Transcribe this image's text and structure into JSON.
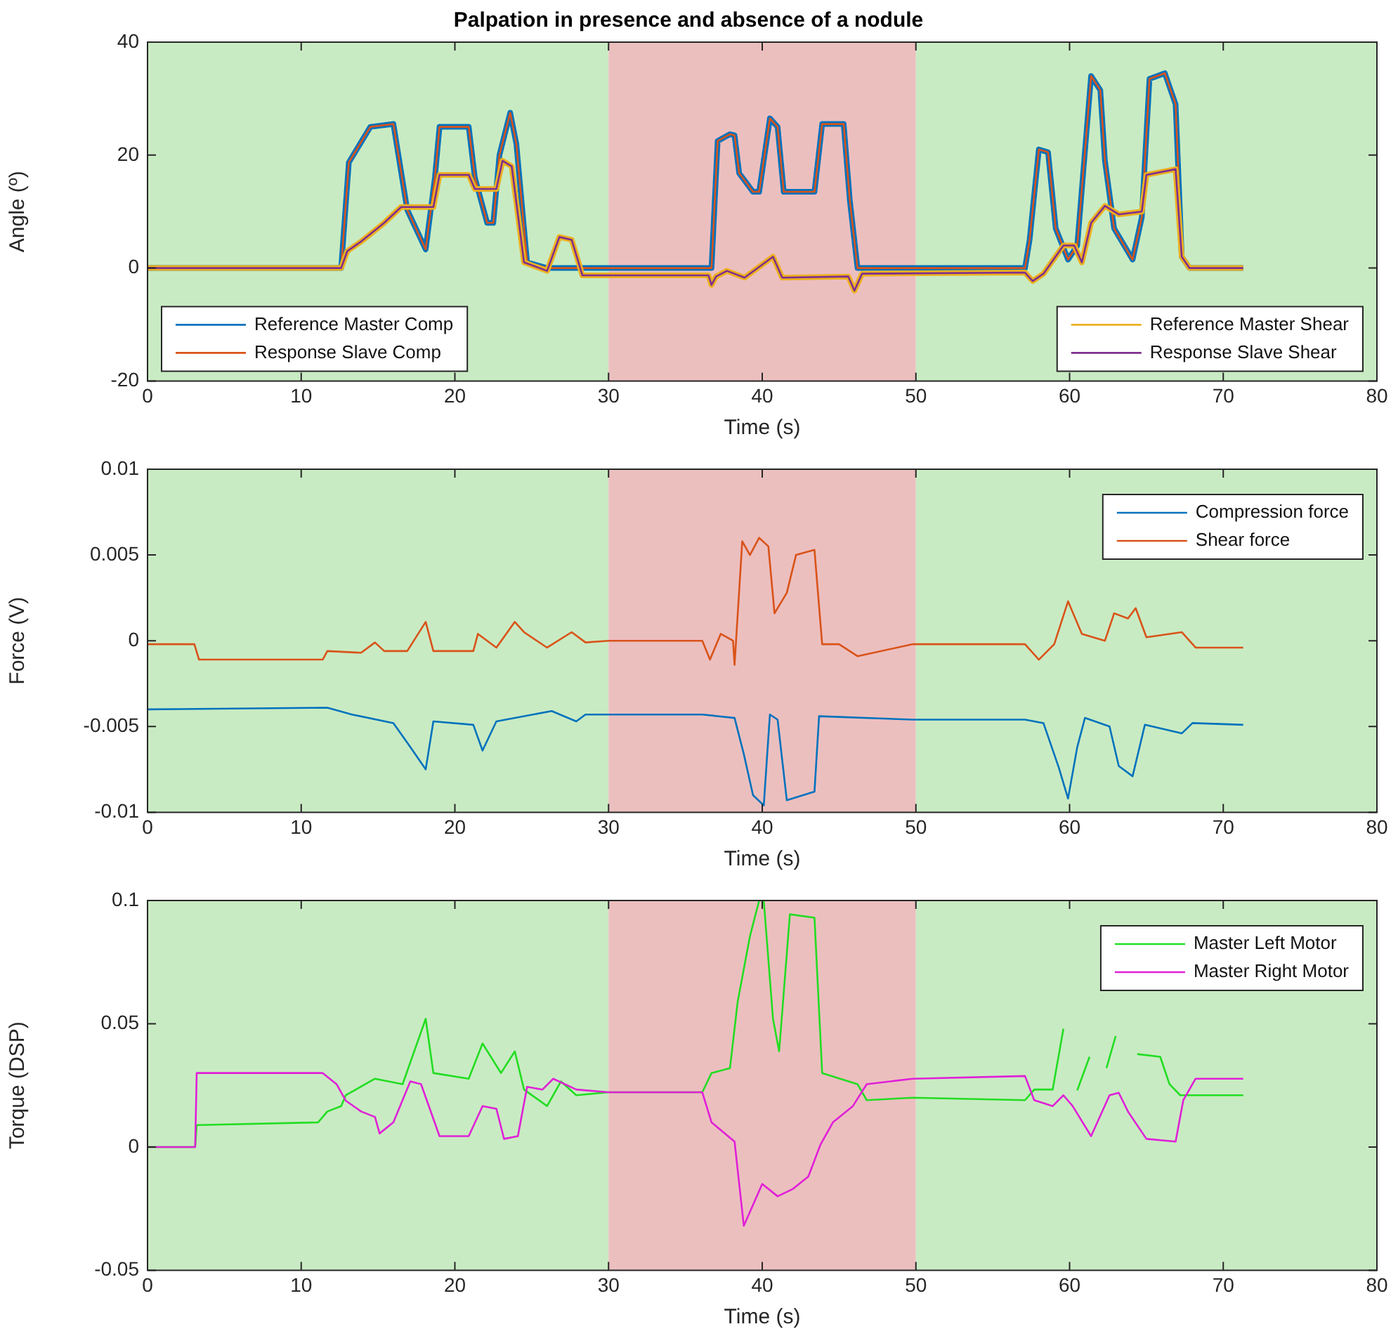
{
  "chart_data": [
    {
      "type": "line",
      "title": "Palpation in presence and absence of a nodule",
      "xlabel": "Time (s)",
      "ylabel": "Angle (º)",
      "xlim": [
        0,
        80
      ],
      "xticks": [
        0,
        10,
        20,
        30,
        40,
        50,
        60,
        70,
        80
      ],
      "ylim": [
        -20,
        40
      ],
      "yticks": [
        -20,
        0,
        20,
        40
      ],
      "grid": false,
      "legend": "bottom",
      "marker": "none",
      "line_style": "solid",
      "bands": [
        {
          "axis": "x",
          "from": 0,
          "to": 30,
          "color": "#c9ebc3"
        },
        {
          "axis": "x",
          "from": 30,
          "to": 50,
          "color": "#ecbfbf"
        },
        {
          "axis": "x",
          "from": 50,
          "to": 80,
          "color": "#c9ebc3"
        }
      ],
      "series": [
        {
          "name": "Reference Master Comp",
          "color": "#0072bd",
          "x": [
            0,
            12.6,
            13.1,
            14.5,
            16.0,
            16.9,
            18.1,
            18.7,
            19.0,
            20.9,
            21.3,
            22.1,
            22.5,
            22.9,
            23.6,
            24.0,
            24.7,
            26.0,
            30,
            36.7,
            37.1,
            37.9,
            38.2,
            38.5,
            39.4,
            39.8,
            40.5,
            41.0,
            41.4,
            43.4,
            43.9,
            45.3,
            45.7,
            46.2,
            57.1,
            57.4,
            58.0,
            58.6,
            59.1,
            59.9,
            60.5,
            61.4,
            62.0,
            62.3,
            62.9,
            64.1,
            64.7,
            65.2,
            66.2,
            66.9,
            67.3,
            67.8,
            71.3
          ],
          "values": [
            0,
            0,
            18.7,
            25,
            25.5,
            10.3,
            3.3,
            16,
            25,
            25,
            16,
            8,
            8,
            20,
            27.5,
            22,
            1,
            0,
            0,
            0,
            22.5,
            23.7,
            23.5,
            16.8,
            13.5,
            13.5,
            26.5,
            25,
            13.5,
            13.5,
            25.5,
            25.5,
            12,
            0,
            0,
            5,
            21,
            20.5,
            7,
            1.5,
            4,
            34,
            31.5,
            19,
            7,
            1.5,
            9,
            33.5,
            34.5,
            29,
            2,
            0,
            0
          ]
        },
        {
          "name": "Response Slave Comp",
          "color": "#d95319",
          "x": [
            0,
            12.6,
            13.1,
            14.5,
            16.0,
            16.9,
            18.1,
            18.7,
            19.0,
            20.9,
            21.3,
            22.1,
            22.5,
            22.9,
            23.6,
            24.0,
            24.7,
            26.0,
            30,
            36.7,
            37.1,
            37.9,
            38.2,
            38.5,
            39.4,
            39.8,
            40.5,
            41.0,
            41.4,
            43.4,
            43.9,
            45.3,
            45.7,
            46.2,
            57.1,
            57.4,
            58.0,
            58.6,
            59.1,
            59.9,
            60.5,
            61.4,
            62.0,
            62.3,
            62.9,
            64.1,
            64.7,
            65.2,
            66.2,
            66.9,
            67.3,
            67.8,
            71.3
          ],
          "values": [
            0,
            0,
            18.7,
            25,
            25.5,
            10.3,
            3.3,
            16,
            25,
            25,
            16,
            8,
            8,
            20,
            27.5,
            22,
            1,
            0,
            0,
            0,
            22.5,
            23.7,
            23.5,
            16.8,
            13.5,
            13.5,
            26.5,
            25,
            13.5,
            13.5,
            25.5,
            25.5,
            12,
            0,
            0,
            5,
            21,
            20.5,
            7,
            1.5,
            4,
            34,
            31.5,
            19,
            7,
            1.5,
            9,
            33.5,
            34.5,
            29,
            2,
            0,
            0
          ]
        },
        {
          "name": "Reference Master Shear",
          "color": "#edb120",
          "x": [
            0,
            12.6,
            13.0,
            13.9,
            15.4,
            16.5,
            18.6,
            19.0,
            20.9,
            21.3,
            22.7,
            23.1,
            23.7,
            24.5,
            26.0,
            26.8,
            27.6,
            28.3,
            36.5,
            36.7,
            37.0,
            37.7,
            38.85,
            40.7,
            41.3,
            45.6,
            46.0,
            46.5,
            57.1,
            57.6,
            58.3,
            59.6,
            60.3,
            60.8,
            61.4,
            62.3,
            63.2,
            64.7,
            65.0,
            66.9,
            67.3,
            67.8,
            71.3
          ],
          "values": [
            0,
            0,
            3,
            4.7,
            8,
            10.8,
            10.8,
            16.5,
            16.5,
            14,
            14,
            19,
            18,
            1,
            -0.5,
            5.5,
            5,
            -1.3,
            -1.3,
            -3,
            -1.5,
            -0.5,
            -1.7,
            2,
            -1.7,
            -1.5,
            -4,
            -1,
            -0.8,
            -2.3,
            -1,
            4,
            4,
            1,
            8,
            11,
            9.5,
            10,
            16.5,
            17.5,
            2,
            0,
            0
          ]
        },
        {
          "name": "Response Slave Shear",
          "color": "#7e2f8e",
          "x": [
            0,
            12.6,
            13.0,
            13.9,
            15.4,
            16.5,
            18.6,
            19.0,
            20.9,
            21.3,
            22.7,
            23.1,
            23.7,
            24.5,
            26.0,
            26.8,
            27.6,
            28.3,
            36.5,
            36.7,
            37.0,
            37.7,
            38.85,
            40.7,
            41.3,
            45.6,
            46.0,
            46.5,
            57.1,
            57.6,
            58.3,
            59.6,
            60.3,
            60.8,
            61.4,
            62.3,
            63.2,
            64.7,
            65.0,
            66.9,
            67.3,
            67.8,
            71.3
          ],
          "values": [
            0,
            0,
            3,
            4.7,
            8,
            10.8,
            10.8,
            16.5,
            16.5,
            14,
            14,
            19,
            18,
            1,
            -0.5,
            5.5,
            5,
            -1.3,
            -1.3,
            -3,
            -1.5,
            -0.5,
            -1.7,
            2,
            -1.7,
            -1.5,
            -4,
            -1,
            -0.8,
            -2.3,
            -1,
            4,
            4,
            1,
            8,
            11,
            9.5,
            10,
            16.5,
            17.5,
            2,
            0,
            0
          ]
        }
      ]
    },
    {
      "type": "line",
      "xlabel": "Time (s)",
      "ylabel": "Force (V)",
      "xlim": [
        0,
        80
      ],
      "xticks": [
        0,
        10,
        20,
        30,
        40,
        50,
        60,
        70,
        80
      ],
      "ylim": [
        -0.01,
        0.01
      ],
      "yticks": [
        -0.01,
        -0.005,
        0,
        0.005,
        0.01
      ],
      "grid": false,
      "legend": "top right",
      "marker": "none",
      "line_style": "solid",
      "bands": [
        {
          "axis": "x",
          "from": 0,
          "to": 30,
          "color": "#c9ebc3"
        },
        {
          "axis": "x",
          "from": 30,
          "to": 50,
          "color": "#ecbfbf"
        },
        {
          "axis": "x",
          "from": 50,
          "to": 80,
          "color": "#c9ebc3"
        }
      ],
      "series": [
        {
          "name": "Compression force",
          "color": "#0072bd",
          "x": [
            0,
            11.7,
            13.3,
            16.0,
            17.1,
            18.1,
            18.6,
            21.2,
            21.8,
            22.7,
            26.3,
            27.9,
            28.5,
            36.1,
            38.2,
            38.8,
            39.4,
            40.1,
            40.5,
            41.0,
            41.6,
            43.4,
            43.7,
            49.8,
            57.1,
            58.3,
            59.3,
            59.9,
            60.5,
            61.0,
            62.6,
            63.2,
            64.1,
            64.9,
            67.3,
            68.0,
            71.3
          ],
          "values": [
            -0.004,
            -0.0039,
            -0.0043,
            -0.0048,
            -0.0062,
            -0.0075,
            -0.0047,
            -0.0049,
            -0.0064,
            -0.0047,
            -0.0041,
            -0.0047,
            -0.0043,
            -0.0043,
            -0.0045,
            -0.0066,
            -0.009,
            -0.0096,
            -0.0043,
            -0.0046,
            -0.0093,
            -0.0088,
            -0.0044,
            -0.0046,
            -0.0046,
            -0.0048,
            -0.0074,
            -0.0092,
            -0.0062,
            -0.0045,
            -0.005,
            -0.0073,
            -0.0079,
            -0.0049,
            -0.0054,
            -0.0048,
            -0.0049
          ]
        },
        {
          "name": "Shear force",
          "color": "#d95319",
          "x": [
            0,
            3.05,
            3.35,
            11.4,
            11.7,
            13.9,
            14.8,
            15.4,
            16.9,
            18.1,
            18.6,
            21.2,
            21.5,
            22.7,
            23.9,
            24.5,
            26.0,
            27.6,
            28.5,
            30,
            36.1,
            36.6,
            37.3,
            38.1,
            38.2,
            38.7,
            39.2,
            39.8,
            40.4,
            40.8,
            41.6,
            42.2,
            43.4,
            43.9,
            45.0,
            46.2,
            49.8,
            57.1,
            58.0,
            59.0,
            59.9,
            60.8,
            62.3,
            62.9,
            63.8,
            64.3,
            65.0,
            67.3,
            68.2,
            71.3
          ],
          "values": [
            -0.0002,
            -0.0002,
            -0.0011,
            -0.0011,
            -0.0006,
            -0.0007,
            -0.0001,
            -0.0006,
            -0.0006,
            0.0011,
            -0.0006,
            -0.0006,
            0.0004,
            -0.0004,
            0.0011,
            0.0005,
            -0.0004,
            0.0005,
            -0.0001,
            0,
            0,
            -0.0011,
            0.0004,
            0,
            -0.0014,
            0.0058,
            0.005,
            0.006,
            0.0055,
            0.0016,
            0.0028,
            0.005,
            0.0053,
            -0.0002,
            -0.0002,
            -0.0009,
            -0.0002,
            -0.0002,
            -0.0011,
            -0.0002,
            0.0023,
            0.0004,
            0,
            0.0016,
            0.0013,
            0.0019,
            0.0002,
            0.0005,
            -0.0004,
            -0.0004
          ]
        }
      ]
    },
    {
      "type": "line",
      "xlabel": "Time (s)",
      "ylabel": "Torque (DSP)",
      "xlim": [
        0,
        80
      ],
      "xticks": [
        0,
        10,
        20,
        30,
        40,
        50,
        60,
        70,
        80
      ],
      "ylim": [
        -0.05,
        0.1
      ],
      "yticks": [
        -0.05,
        0,
        0.05,
        0.1
      ],
      "grid": false,
      "legend": "top right",
      "marker": "none",
      "line_style": "solid",
      "bands": [
        {
          "axis": "x",
          "from": 0,
          "to": 30,
          "color": "#c9ebc3"
        },
        {
          "axis": "x",
          "from": 30,
          "to": 50,
          "color": "#ecbfbf"
        },
        {
          "axis": "x",
          "from": 50,
          "to": 80,
          "color": "#c9ebc3"
        }
      ],
      "series": [
        {
          "name": "Master Left Motor",
          "color": "#22dd22",
          "x": [
            0,
            3.1,
            3.2,
            11.1,
            11.7,
            12.6,
            12.9,
            14.8,
            16.6,
            18.1,
            18.6,
            20.9,
            21.8,
            23.0,
            23.9,
            24.5,
            26.0,
            26.9,
            27.9,
            30,
            36.1,
            36.7,
            37.9,
            38.4,
            39.2,
            39.8,
            40.1,
            40.7,
            41.1,
            41.8,
            43.4,
            43.9,
            46.2,
            46.8,
            49.8,
            57.1,
            57.7,
            58.9,
            59.6,
            60.0,
            60.5,
            61.3,
            61.8,
            62.4,
            63.0,
            63.6,
            64.4,
            65.9,
            66.5,
            67.2,
            71.3
          ],
          "values": [
            0,
            0,
            0.0089,
            0.01,
            0.0144,
            0.0166,
            0.021,
            0.0277,
            0.0255,
            0.052,
            0.03,
            0.0277,
            0.042,
            0.03,
            0.0388,
            0.0233,
            0.0166,
            0.0266,
            0.021,
            0.0222,
            0.0222,
            0.03,
            0.032,
            0.0588,
            0.0855,
            0.1,
            0.1,
            0.052,
            0.0388,
            0.0944,
            0.093,
            0.03,
            0.0255,
            0.019,
            0.02,
            0.019,
            0.0233,
            0.0233,
            0.048,
            null,
            0.023,
            0.0366,
            null,
            0.032,
            0.045,
            null,
            0.0377,
            0.0366,
            0.0255,
            0.021,
            0.021
          ]
        },
        {
          "name": "Master Right Motor",
          "color": "#e020d8",
          "x": [
            0,
            3.1,
            3.2,
            11.4,
            12.3,
            12.9,
            13.9,
            14.8,
            15.1,
            16.0,
            17.1,
            17.8,
            19.0,
            20.9,
            21.8,
            22.7,
            23.2,
            24.1,
            24.7,
            25.7,
            26.4,
            27.9,
            30,
            36.1,
            36.7,
            38.2,
            38.8,
            40.0,
            41.0,
            42.0,
            43.0,
            43.8,
            44.6,
            45.9,
            46.8,
            49.8,
            57.1,
            57.7,
            58.9,
            59.6,
            60.2,
            61.4,
            62.6,
            63.2,
            63.8,
            65.0,
            66.9,
            67.4,
            68.2,
            71.3
          ],
          "values": [
            0,
            0,
            0.03,
            0.03,
            0.0255,
            0.0188,
            0.0144,
            0.0122,
            0.0055,
            0.01,
            0.0266,
            0.0255,
            0.0044,
            0.0044,
            0.0166,
            0.0155,
            0.0033,
            0.0044,
            0.0244,
            0.0233,
            0.0277,
            0.0233,
            0.0222,
            0.0222,
            0.01,
            0.0022,
            -0.032,
            -0.015,
            -0.02,
            -0.017,
            -0.012,
            0.0011,
            0.01,
            0.0166,
            0.0255,
            0.0277,
            0.0288,
            0.019,
            0.0166,
            0.021,
            0.0166,
            0.0044,
            0.021,
            0.022,
            0.0144,
            0.0033,
            0.0022,
            0.019,
            0.0277,
            0.0277
          ]
        }
      ]
    }
  ]
}
